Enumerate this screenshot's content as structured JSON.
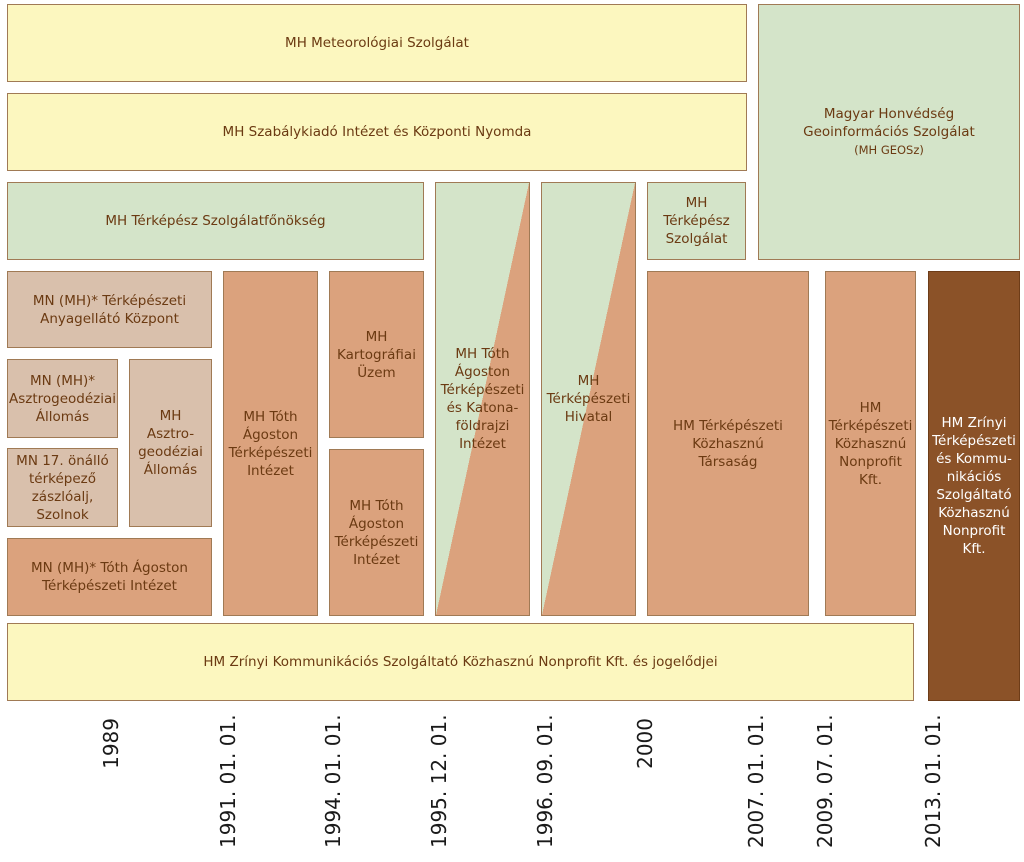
{
  "boxes": {
    "meteo": "MH Meteorológiai Szolgálat",
    "szabaly": "MH Szabálykiadó Intézet és Központi Nyomda",
    "geosz": "Magyar Honvédség\nGeoinformációs Szolgálat",
    "geosz_abbr": "(MH GEOSz)",
    "szolgfonok": "MH Térképész Szolgálatfőnökség",
    "tothkatona": "MH Tóth\nÁgoston\nTérképészeti\nés Katona-\nföldrajzi\nIntézet",
    "hivatal": "MH\nTérképészeti\nHivatal",
    "terkepesz_szolg": "MH Térképész\nSzolgálat",
    "anyagellato": "MN (MH)* Térképészeti\nAnyagellátó Központ",
    "asztro_allomas": "MN (MH)*\nAsztrogeodéziai\nÁllomás",
    "mh_asztro": "MH Asztro-\ngeodéziai\nÁllomás",
    "zaszloalj": "MN 17. önálló\ntérképező\nzászlóalj,\nSzolnok",
    "mn_toth": "MN (MH)* Tóth Ágoston\nTérképészeti Intézet",
    "mh_toth1": "MH Tóth\nÁgoston\nTérképészeti\nIntézet",
    "kartografiai": "MH\nKartográfiai\nÜzem",
    "mh_toth2": "MH Tóth\nÁgoston\nTérképészeti\nIntézet",
    "hm_tarsasag": "HM Térképészeti\nKözhasznú\nTársaság",
    "hm_nonprofit": "HM\nTérképészeti\nKözhasznú\nNonprofit\nKft.",
    "hm_zrinyi": "HM Zrínyi\nTérképészeti\nés Kommu-\nnikációs\nSzolgáltató\nKözhasznú\nNonprofit\nKft.",
    "zrinyi_bottom": "HM Zrínyi Kommunikációs Szolgáltató Közhasznú Nonprofit Kft. és jogelődjei"
  },
  "years": [
    "1989",
    "1991. 01. 01.",
    "1994. 01. 01.",
    "1995. 12. 01.",
    "1996. 09. 01.",
    "2000",
    "2007. 01. 01.",
    "2009. 07. 01.",
    "2013. 01. 01."
  ],
  "colors": {
    "yellow": "#fcf7bf",
    "green": "#d4e4c9",
    "tan": "#d9c0ac",
    "orange": "#dba27d",
    "brown": "#8b5228",
    "text": "#6b3a12"
  }
}
